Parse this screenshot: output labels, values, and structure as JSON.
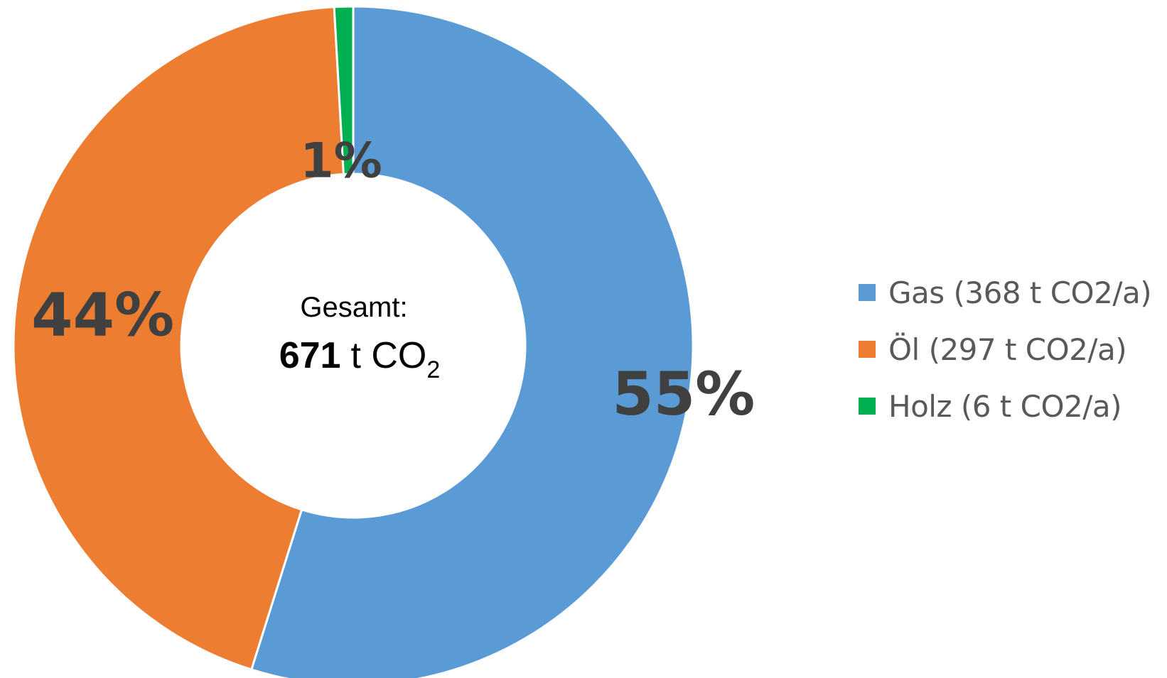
{
  "chart_data": {
    "type": "donut",
    "series": [
      {
        "name": "Gas (368 t CO2/a)",
        "value": 368,
        "label": "55%",
        "color": "#5B9BD5"
      },
      {
        "name": "Öl (297 t CO2/a)",
        "value": 297,
        "label": "44%",
        "color": "#ED7D31"
      },
      {
        "name": "Holz (6 t CO2/a)",
        "value": 6,
        "label": "1%",
        "color": "#00B050"
      }
    ],
    "center": {
      "caption": "Gesamt:",
      "total_value": "671",
      "total_unit": "t CO",
      "total_unit_subscript": "2"
    },
    "legend_position": "right"
  }
}
